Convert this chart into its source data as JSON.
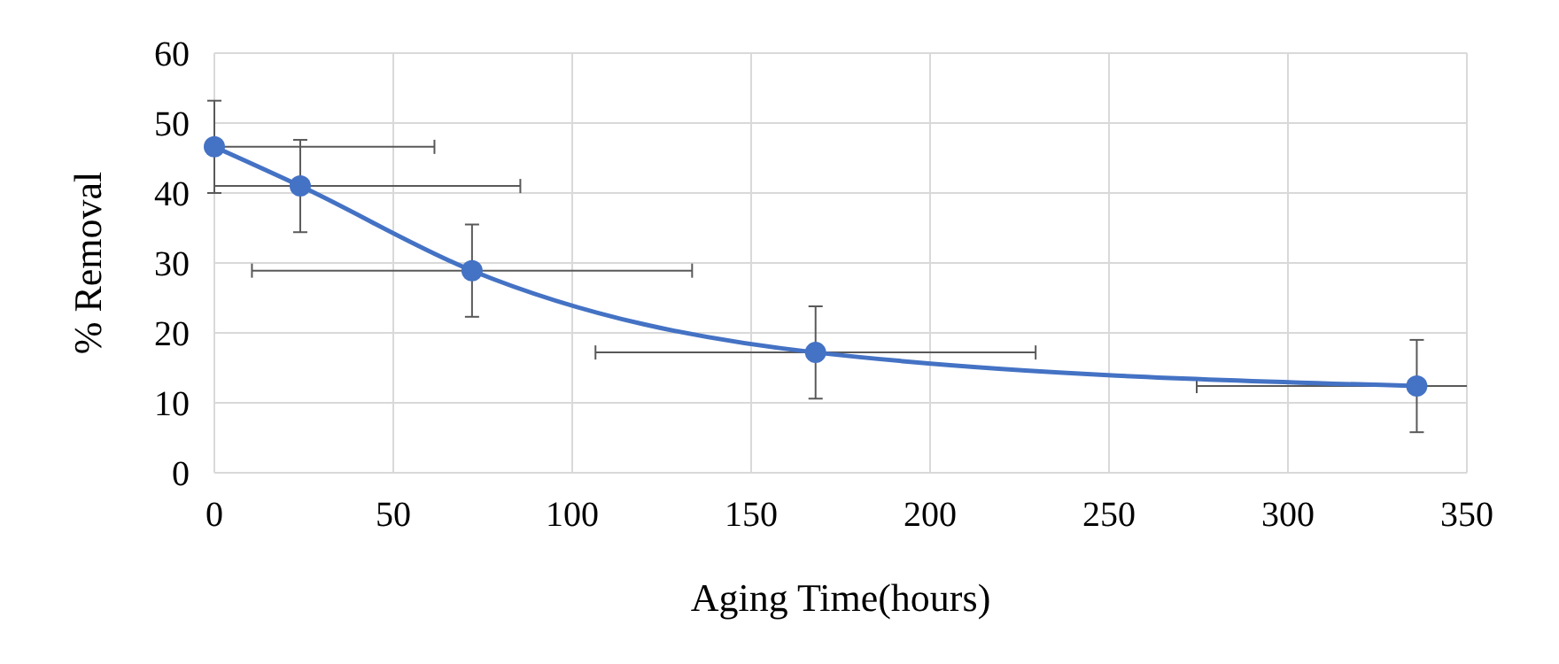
{
  "chart_data": {
    "type": "line",
    "xlabel": "Aging Time(hours)",
    "ylabel": "% Removal",
    "x": [
      0,
      24,
      72,
      168,
      336
    ],
    "series": [
      {
        "color": "#4472c4",
        "values": [
          46.6,
          41,
          28.9,
          17.2,
          12.4
        ],
        "errors": [
          6.6,
          6.6,
          6.6,
          6.6,
          6.6
        ],
        "xerrors": [
          [
            0,
            61.5
          ],
          [
            0,
            85.5
          ],
          61.5,
          61.5,
          [
            274.5,
            350
          ]
        ]
      }
    ],
    "xlim": [
      0,
      350
    ],
    "xticks": [
      0,
      50,
      100,
      150,
      200,
      250,
      300,
      350
    ],
    "ylim": [
      0,
      60
    ],
    "yticks": [
      0,
      10,
      20,
      30,
      40,
      50,
      60
    ],
    "grid": true,
    "marker": "circle",
    "line_style": "solid"
  }
}
